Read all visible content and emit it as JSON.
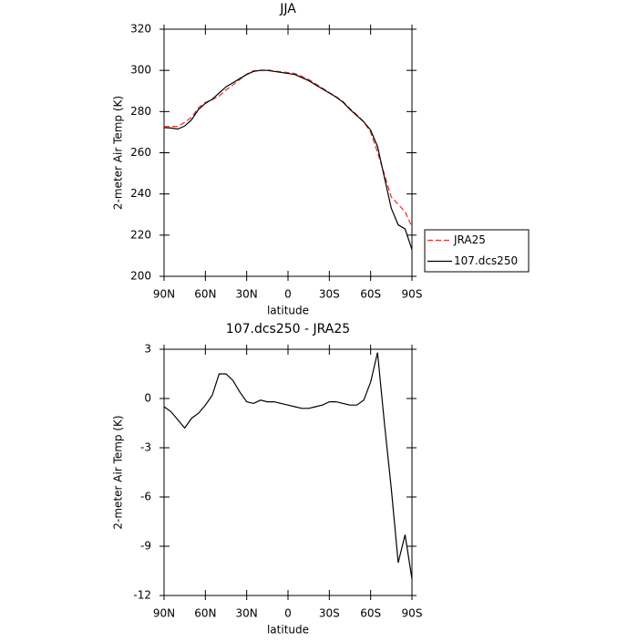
{
  "chart_data": [
    {
      "type": "line",
      "title": "JJA",
      "xlabel": "latitude",
      "ylabel": "2-meter Air Temp (K)",
      "x": [
        90,
        85,
        80,
        75,
        70,
        65,
        60,
        55,
        50,
        45,
        40,
        35,
        30,
        25,
        20,
        15,
        10,
        5,
        0,
        -5,
        -10,
        -15,
        -20,
        -25,
        -30,
        -35,
        -40,
        -45,
        -50,
        -55,
        -60,
        -65,
        -70,
        -75,
        -80,
        -85,
        -90
      ],
      "xlim": [
        90,
        -90
      ],
      "xticks": [
        {
          "value": 90,
          "label": "90N"
        },
        {
          "value": 60,
          "label": "60N"
        },
        {
          "value": 30,
          "label": "30N"
        },
        0,
        {
          "value": -30,
          "label": "30S"
        },
        {
          "value": -60,
          "label": "60S"
        },
        {
          "value": -90,
          "label": "90S"
        }
      ],
      "ylim": [
        200,
        320
      ],
      "yticks": [
        200,
        220,
        240,
        260,
        280,
        300,
        320
      ],
      "legend": "right",
      "series": [
        {
          "name": "JRA25",
          "color": "#e0302a",
          "dashed": true,
          "values": [
            272.7,
            272.8,
            272.8,
            274.8,
            277.2,
            281.9,
            284.4,
            285.8,
            287.5,
            290.5,
            292.9,
            295.6,
            298.2,
            299.8,
            300.1,
            300.2,
            299.7,
            299.3,
            298.9,
            298.5,
            297.1,
            295.6,
            293.5,
            291.4,
            289.2,
            287.2,
            284.8,
            281.4,
            278.4,
            275.1,
            270,
            260.2,
            249.5,
            238.5,
            235,
            231.3,
            224
          ]
        },
        {
          "name": "107.dcs250",
          "color": "#000000",
          "dashed": false,
          "values": [
            272.2,
            272,
            271.5,
            273,
            276,
            281,
            284,
            286,
            289,
            292,
            294,
            296,
            298,
            299.5,
            300,
            300,
            299.5,
            299,
            298.5,
            298,
            296.5,
            295,
            293,
            291,
            289,
            287,
            284.5,
            281,
            278,
            275,
            271,
            263,
            248,
            233,
            225,
            223,
            213
          ]
        }
      ]
    },
    {
      "type": "line",
      "title": "107.dcs250 - JRA25",
      "xlabel": "latitude",
      "ylabel": "2-meter Air Temp (K)",
      "x": [
        90,
        85,
        80,
        75,
        70,
        65,
        60,
        55,
        50,
        45,
        40,
        35,
        30,
        25,
        20,
        15,
        10,
        5,
        0,
        -5,
        -10,
        -15,
        -20,
        -25,
        -30,
        -35,
        -40,
        -45,
        -50,
        -55,
        -60,
        -65,
        -70,
        -75,
        -80,
        -85,
        -90
      ],
      "xlim": [
        90,
        -90
      ],
      "xticks": [
        {
          "value": 90,
          "label": "90N"
        },
        {
          "value": 60,
          "label": "60N"
        },
        {
          "value": 30,
          "label": "30N"
        },
        0,
        {
          "value": -30,
          "label": "30S"
        },
        {
          "value": -60,
          "label": "60S"
        },
        {
          "value": -90,
          "label": "90S"
        }
      ],
      "ylim": [
        -12,
        3
      ],
      "yticks": [
        -12,
        -9,
        -6,
        -3,
        0,
        3
      ],
      "color": "#000000",
      "values": [
        -0.5,
        -0.8,
        -1.3,
        -1.8,
        -1.2,
        -0.9,
        -0.4,
        0.2,
        1.5,
        1.5,
        1.1,
        0.4,
        -0.2,
        -0.3,
        -0.1,
        -0.2,
        -0.2,
        -0.3,
        -0.4,
        -0.5,
        -0.6,
        -0.6,
        -0.5,
        -0.4,
        -0.2,
        -0.2,
        -0.3,
        -0.4,
        -0.4,
        -0.1,
        1.0,
        2.8,
        -1.5,
        -5.5,
        -10,
        -8.3,
        -11
      ]
    }
  ]
}
